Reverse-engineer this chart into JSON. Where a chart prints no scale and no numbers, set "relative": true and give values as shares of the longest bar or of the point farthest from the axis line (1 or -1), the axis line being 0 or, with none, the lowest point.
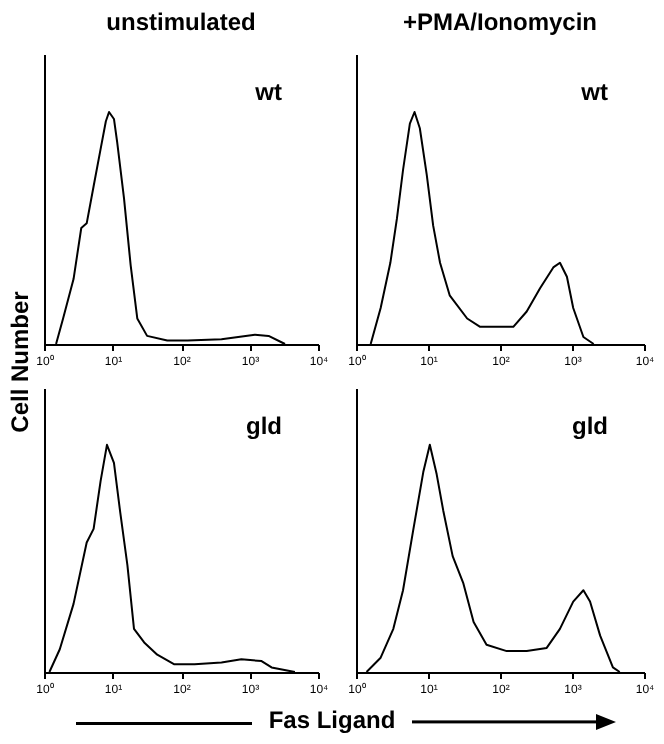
{
  "chart_data": [
    {
      "type": "line",
      "title": "unstimulated",
      "ylabel": "Cell Number",
      "annotations": [
        "wt"
      ],
      "relative": true,
      "log": "x",
      "xlim": [
        1,
        10000
      ],
      "xticks": [
        {
          "value": 1,
          "label": "10⁰"
        },
        {
          "value": 10,
          "label": "10¹"
        },
        {
          "value": 100,
          "label": "10²"
        },
        {
          "value": 1000,
          "label": "10³"
        },
        {
          "value": 10000,
          "label": "10⁴"
        }
      ],
      "x": [
        1.5,
        1.9,
        2.7,
        3.5,
        4.2,
        5.3,
        6.7,
        8.0,
        8.9,
        10.5,
        11.7,
        14.7,
        18.4,
        23,
        32,
        63,
        125,
        390,
        1200,
        1900,
        3300
      ],
      "series": [
        {
          "color": "#000000",
          "values": [
            0,
            0.11,
            0.28,
            0.5,
            0.52,
            0.68,
            0.84,
            0.96,
            1,
            0.97,
            0.87,
            0.63,
            0.34,
            0.11,
            0.035,
            0.015,
            0.015,
            0.02,
            0.04,
            0.035,
            0
          ]
        }
      ]
    },
    {
      "type": "line",
      "title": "+PMA/Ionomycin",
      "annotations": [
        "wt"
      ],
      "relative": true,
      "log": "x",
      "xlim": [
        1,
        10000
      ],
      "xticks": [
        {
          "value": 1,
          "label": "10⁰"
        },
        {
          "value": 10,
          "label": "10¹"
        },
        {
          "value": 100,
          "label": "10²"
        },
        {
          "value": 1000,
          "label": "10³"
        },
        {
          "value": 10000,
          "label": "10⁴"
        }
      ],
      "x": [
        1.6,
        2.2,
        3.0,
        3.7,
        4.5,
        5.6,
        6.5,
        7.7,
        9.6,
        11.8,
        14.7,
        20,
        35,
        53,
        100,
        153,
        235,
        360,
        550,
        680,
        850,
        1040,
        1440,
        2000
      ],
      "series": [
        {
          "color": "#000000",
          "values": [
            0,
            0.155,
            0.35,
            0.54,
            0.75,
            0.95,
            1,
            0.93,
            0.73,
            0.51,
            0.35,
            0.21,
            0.11,
            0.074,
            0.074,
            0.074,
            0.14,
            0.24,
            0.33,
            0.35,
            0.29,
            0.155,
            0.03,
            0
          ]
        }
      ]
    },
    {
      "type": "line",
      "xlabel": "Fas Ligand",
      "annotations": [
        "gld"
      ],
      "relative": true,
      "log": "x",
      "xlim": [
        1,
        10000
      ],
      "xticks": [
        {
          "value": 1,
          "label": "10⁰"
        },
        {
          "value": 10,
          "label": "10¹"
        },
        {
          "value": 100,
          "label": "10²"
        },
        {
          "value": 1000,
          "label": "10³"
        },
        {
          "value": 10000,
          "label": "10⁴"
        }
      ],
      "x": [
        1.2,
        1.7,
        2.7,
        4.2,
        5.3,
        6.7,
        8.3,
        10.5,
        13,
        16.5,
        20.6,
        29,
        45,
        80,
        158,
        390,
        760,
        1500,
        2100,
        4600
      ],
      "series": [
        {
          "color": "#000000",
          "values": [
            0,
            0.1,
            0.3,
            0.57,
            0.63,
            0.84,
            1,
            0.92,
            0.7,
            0.47,
            0.19,
            0.13,
            0.076,
            0.034,
            0.034,
            0.042,
            0.056,
            0.048,
            0.02,
            0
          ]
        }
      ]
    },
    {
      "type": "line",
      "annotations": [
        "gld"
      ],
      "relative": true,
      "log": "x",
      "xlim": [
        1,
        10000
      ],
      "xticks": [
        {
          "value": 1,
          "label": "10⁰"
        },
        {
          "value": 10,
          "label": "10¹"
        },
        {
          "value": 100,
          "label": "10²"
        },
        {
          "value": 1000,
          "label": "10³"
        },
        {
          "value": 10000,
          "label": "10⁴"
        }
      ],
      "x": [
        1.4,
        2.2,
        3.3,
        4.5,
        6.2,
        8.6,
        10.6,
        13.2,
        16.3,
        22,
        31,
        43,
        65,
        124,
        235,
        445,
        680,
        1040,
        1440,
        1780,
        2460,
        3700,
        4600
      ],
      "series": [
        {
          "color": "#000000",
          "values": [
            0,
            0.063,
            0.19,
            0.36,
            0.62,
            0.88,
            1,
            0.87,
            0.71,
            0.51,
            0.39,
            0.22,
            0.12,
            0.092,
            0.092,
            0.106,
            0.19,
            0.31,
            0.36,
            0.31,
            0.16,
            0.02,
            0
          ]
        }
      ]
    }
  ]
}
